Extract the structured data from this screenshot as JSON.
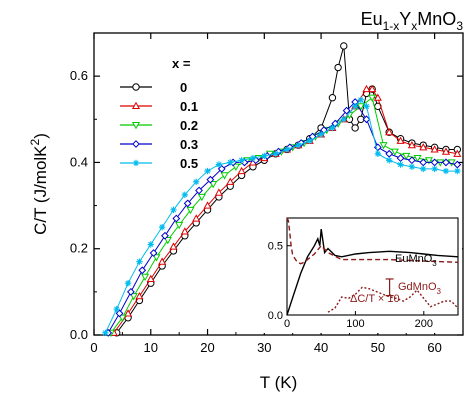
{
  "chart_data": [
    {
      "type": "scatter",
      "title": "Eu",
      "title_parts": {
        "base1": "Eu",
        "sub1": "1-x",
        "base2": "Y",
        "sub2": "x",
        "base3": "MnO",
        "sub3": "3"
      },
      "xlabel": "T (K)",
      "ylabel_parts": {
        "main": "C/T (J/molK",
        "sup": "2",
        "close": ")"
      },
      "xlim": [
        0,
        65
      ],
      "ylim": [
        0,
        0.7
      ],
      "xticks": [
        "0",
        "10",
        "20",
        "30",
        "40",
        "50",
        "60"
      ],
      "yticks": [
        "0.0",
        "0.2",
        "0.4",
        "0.6"
      ],
      "legend_title": "x =",
      "legend_placement": "top-left",
      "series": [
        {
          "name": "0",
          "color": "#000000",
          "marker": "circle",
          "x": [
            4,
            6,
            8,
            10,
            12,
            14,
            16,
            18,
            20,
            22,
            24,
            26,
            28,
            30,
            32,
            34,
            36,
            38,
            40,
            42,
            43,
            44,
            45,
            46,
            47,
            48,
            49,
            50,
            52,
            54,
            56,
            58,
            60,
            62,
            64
          ],
          "y": [
            0.005,
            0.04,
            0.08,
            0.12,
            0.16,
            0.195,
            0.23,
            0.26,
            0.29,
            0.32,
            0.345,
            0.37,
            0.39,
            0.405,
            0.42,
            0.43,
            0.44,
            0.455,
            0.48,
            0.55,
            0.62,
            0.67,
            0.5,
            0.48,
            0.5,
            0.56,
            0.57,
            0.53,
            0.47,
            0.455,
            0.445,
            0.44,
            0.435,
            0.43,
            0.43
          ]
        },
        {
          "name": "0.1",
          "color": "#dd0000",
          "marker": "triangle-up",
          "x": [
            3.5,
            6,
            8,
            10,
            12,
            14,
            16,
            18,
            20,
            22,
            24,
            26,
            28,
            30,
            32,
            34,
            36,
            38,
            40,
            42,
            44,
            46,
            48,
            49,
            50,
            52,
            54,
            56,
            58,
            60,
            62,
            64
          ],
          "y": [
            0.005,
            0.05,
            0.09,
            0.13,
            0.17,
            0.205,
            0.24,
            0.27,
            0.3,
            0.33,
            0.355,
            0.38,
            0.4,
            0.41,
            0.42,
            0.43,
            0.44,
            0.45,
            0.465,
            0.48,
            0.5,
            0.53,
            0.57,
            0.57,
            0.55,
            0.47,
            0.45,
            0.44,
            0.435,
            0.43,
            0.425,
            0.42
          ]
        },
        {
          "name": "0.2",
          "color": "#00cc00",
          "marker": "triangle-down",
          "x": [
            3,
            5,
            7,
            9,
            11,
            13,
            15,
            17,
            19,
            21,
            23,
            25,
            27,
            29,
            31,
            33,
            35,
            37,
            39,
            41,
            43,
            45,
            47,
            49,
            51,
            53,
            55,
            57,
            59,
            61,
            63
          ],
          "y": [
            0.005,
            0.04,
            0.09,
            0.135,
            0.18,
            0.22,
            0.255,
            0.29,
            0.32,
            0.35,
            0.37,
            0.39,
            0.405,
            0.41,
            0.42,
            0.425,
            0.435,
            0.445,
            0.46,
            0.475,
            0.49,
            0.51,
            0.53,
            0.55,
            0.44,
            0.425,
            0.415,
            0.41,
            0.405,
            0.4,
            0.4
          ]
        },
        {
          "name": "0.3",
          "color": "#0000cc",
          "marker": "diamond",
          "x": [
            2.5,
            4.5,
            6.5,
            8.5,
            10.5,
            12.5,
            14.5,
            16.5,
            18.5,
            20.5,
            22.5,
            24.5,
            26.5,
            28.5,
            30.5,
            32.5,
            34.5,
            36.5,
            38.5,
            40.5,
            42.5,
            44.5,
            46,
            48,
            50,
            52,
            54,
            56,
            58,
            60,
            62,
            64
          ],
          "y": [
            0.005,
            0.05,
            0.1,
            0.15,
            0.19,
            0.23,
            0.27,
            0.305,
            0.335,
            0.36,
            0.385,
            0.4,
            0.4,
            0.405,
            0.415,
            0.425,
            0.435,
            0.445,
            0.46,
            0.475,
            0.49,
            0.52,
            0.54,
            0.5,
            0.435,
            0.42,
            0.41,
            0.405,
            0.4,
            0.4,
            0.4,
            0.395
          ]
        },
        {
          "name": "0.5",
          "color": "#00bbee",
          "marker": "star",
          "x": [
            2,
            4,
            6,
            8,
            10,
            12,
            14,
            16,
            18,
            20,
            22,
            24,
            26,
            28,
            30,
            32,
            34,
            36,
            38,
            40,
            42,
            44,
            46,
            47,
            48,
            50,
            52,
            54,
            56,
            58,
            60,
            62,
            64
          ],
          "y": [
            0.005,
            0.06,
            0.12,
            0.17,
            0.21,
            0.25,
            0.29,
            0.325,
            0.355,
            0.38,
            0.395,
            0.4,
            0.405,
            0.41,
            0.415,
            0.42,
            0.43,
            0.44,
            0.45,
            0.465,
            0.48,
            0.5,
            0.53,
            0.545,
            0.53,
            0.42,
            0.405,
            0.395,
            0.39,
            0.385,
            0.385,
            0.38,
            0.38
          ]
        }
      ]
    },
    {
      "type": "line",
      "placement": "lower-right inset",
      "xlim": [
        0,
        250
      ],
      "ylim": [
        0,
        0.7
      ],
      "xticks": [
        "0",
        "100",
        "200"
      ],
      "yticks": [
        "0.0",
        "0.5"
      ],
      "annotations": {
        "eu_label": {
          "base": "EuMnO",
          "sub": "3"
        },
        "gd_label": {
          "base": "GdMnO",
          "sub": "3"
        },
        "delta_label": "ΔC/T × 10"
      },
      "series": [
        {
          "name": "EuMnO3",
          "color": "#000000",
          "style": "solid",
          "x": [
            0,
            10,
            20,
            30,
            40,
            45,
            48,
            50,
            55,
            60,
            70,
            80,
            100,
            120,
            150,
            180,
            200,
            220,
            250
          ],
          "y": [
            0,
            0.15,
            0.3,
            0.42,
            0.5,
            0.55,
            0.5,
            0.62,
            0.45,
            0.48,
            0.43,
            0.42,
            0.44,
            0.45,
            0.46,
            0.45,
            0.44,
            0.43,
            0.42
          ]
        },
        {
          "name": "GdMnO3",
          "color": "#8b1a1a",
          "style": "dashed",
          "x": [
            0,
            2,
            4,
            6,
            8,
            10,
            15,
            20,
            25,
            30,
            40,
            50,
            60,
            80,
            100,
            150,
            200,
            250
          ],
          "y": [
            0.7,
            0.68,
            0.6,
            0.5,
            0.44,
            0.42,
            0.38,
            0.37,
            0.38,
            0.4,
            0.44,
            0.5,
            0.45,
            0.4,
            0.4,
            0.4,
            0.39,
            0.38
          ]
        },
        {
          "name": "ΔC/T × 10",
          "color": "#8b1a1a",
          "style": "dotted",
          "x": [
            60,
            70,
            80,
            90,
            100,
            110,
            120,
            130,
            140,
            150,
            160,
            170,
            180,
            190,
            200,
            210,
            220,
            230,
            240,
            250
          ],
          "y": [
            0.02,
            0.05,
            0.13,
            0.12,
            0.15,
            0.2,
            0.19,
            0.17,
            0.15,
            0.13,
            0.12,
            0.1,
            0.13,
            0.18,
            0.12,
            0.06,
            0.08,
            0.1,
            0.1,
            0.05
          ]
        }
      ]
    }
  ]
}
